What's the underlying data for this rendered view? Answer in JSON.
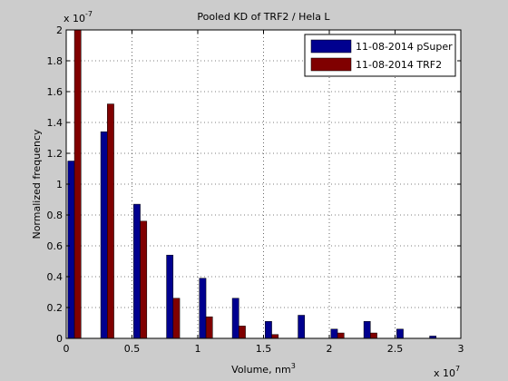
{
  "chart_data": {
    "type": "bar",
    "title": "Pooled KD of TRF2 / Hela L",
    "xlabel": "Volume, nm",
    "xlabel_superscript": "3",
    "ylabel": "Normalized frequency",
    "x_multiplier_base": "x 10",
    "x_multiplier_exp": "7",
    "y_multiplier_base": "x 10",
    "y_multiplier_exp": "-7",
    "xlim": [
      0,
      3
    ],
    "ylim": [
      0,
      2
    ],
    "xticks": [
      "0",
      "0.5",
      "1",
      "1.5",
      "2",
      "2.5",
      "3"
    ],
    "yticks": [
      "0",
      "0.2",
      "0.4",
      "0.6",
      "0.8",
      "1",
      "1.2",
      "1.4",
      "1.6",
      "1.8",
      "2"
    ],
    "grid": true,
    "legend_position": "top-right",
    "bin_width": 0.125,
    "x": [
      0.0625,
      0.1875,
      0.3125,
      0.4375,
      0.5625,
      0.6875,
      0.8125,
      0.9375,
      1.0625,
      1.1875,
      1.3125,
      1.4375,
      1.5625,
      1.6875,
      1.8125,
      1.9375,
      2.0625,
      2.1875,
      2.3125,
      2.4375,
      2.5625,
      2.6875,
      2.8125,
      2.9375
    ],
    "series": [
      {
        "name": "11-08-2014 pSuper",
        "color": "#00008f",
        "values": [
          1.15,
          0.0,
          1.34,
          0.0,
          0.87,
          0.0,
          0.54,
          0.0,
          0.39,
          0.0,
          0.26,
          0.0,
          0.11,
          0.0,
          0.15,
          0.0,
          0.06,
          0.0,
          0.11,
          0.0,
          0.06,
          0.0,
          0.015,
          0.0
        ]
      },
      {
        "name": "11-08-2014 TRF2",
        "color": "#800000",
        "values": [
          2.0,
          0.0,
          1.52,
          0.0,
          0.76,
          0.0,
          0.26,
          0.0,
          0.14,
          0.0,
          0.08,
          0.0,
          0.025,
          0.0,
          0.0,
          0.0,
          0.035,
          0.0,
          0.035,
          0.0,
          0.0,
          0.0,
          0.0,
          0.0
        ]
      }
    ]
  }
}
